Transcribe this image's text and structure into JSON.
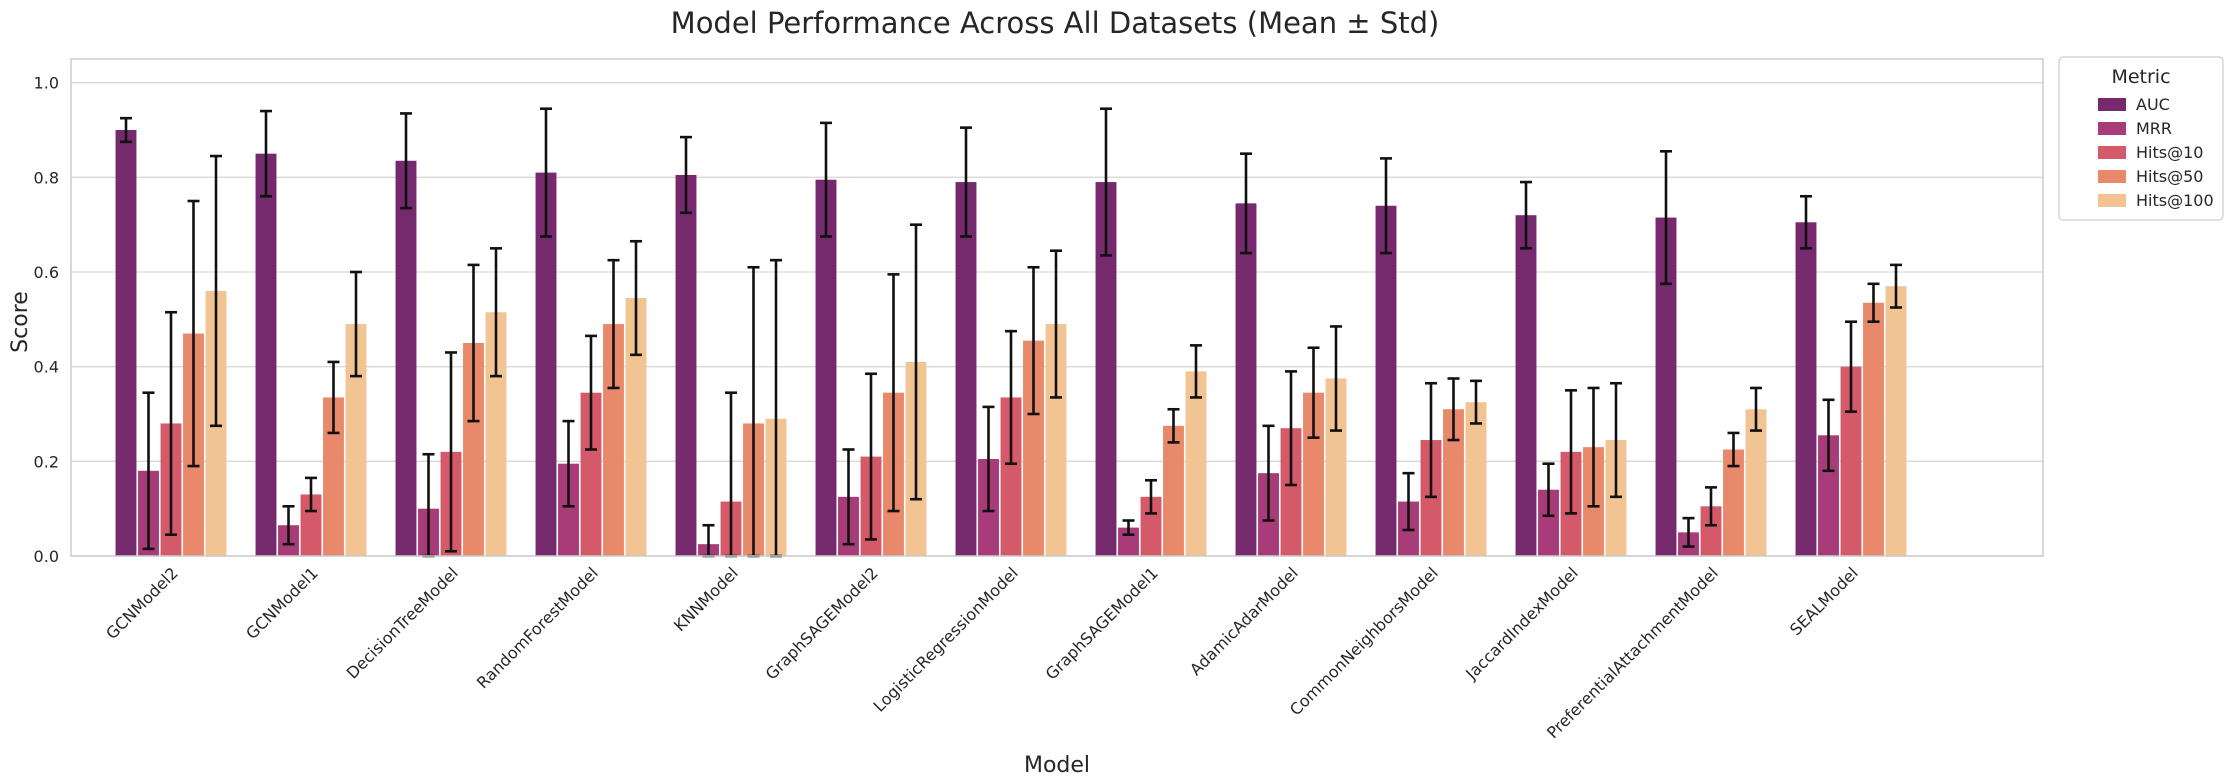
{
  "chart_data": {
    "type": "bar",
    "title": "Model Performance Across All Datasets (Mean ± Std)",
    "xlabel": "Model",
    "ylabel": "Score",
    "ylim": [
      0,
      1.05
    ],
    "yticks": [
      "0.0",
      "0.2",
      "0.4",
      "0.6",
      "0.8",
      "1.0"
    ],
    "grid": true,
    "legend": {
      "title": "Metric",
      "placement": "outside-top-right"
    },
    "categories": [
      "GCNModel2",
      "GCNModel1",
      "DecisionTreeModel",
      "RandomForestModel",
      "KNNModel",
      "GraphSAGEModel2",
      "LogisticRegressionModel",
      "GraphSAGEModel1",
      "AdamicAdarModel",
      "CommonNeighborsModel",
      "JaccardIndexModel",
      "PreferentialAttachmentModel",
      "SEALModel"
    ],
    "series": [
      {
        "name": "AUC",
        "color": "#762a6e",
        "values": [
          0.9,
          0.85,
          0.835,
          0.81,
          0.805,
          0.795,
          0.79,
          0.79,
          0.745,
          0.74,
          0.72,
          0.715,
          0.705
        ],
        "err": [
          0.025,
          0.09,
          0.1,
          0.135,
          0.08,
          0.12,
          0.115,
          0.155,
          0.105,
          0.1,
          0.07,
          0.14,
          0.055
        ]
      },
      {
        "name": "MRR",
        "color": "#a83c78",
        "values": [
          0.18,
          0.065,
          0.1,
          0.195,
          0.025,
          0.125,
          0.205,
          0.06,
          0.175,
          0.115,
          0.14,
          0.05,
          0.255
        ],
        "err": [
          0.165,
          0.04,
          0.115,
          0.09,
          0.04,
          0.1,
          0.11,
          0.015,
          0.1,
          0.06,
          0.055,
          0.03,
          0.075
        ]
      },
      {
        "name": "Hits@10",
        "color": "#d45a6a",
        "values": [
          0.28,
          0.13,
          0.22,
          0.345,
          0.115,
          0.21,
          0.335,
          0.125,
          0.27,
          0.245,
          0.22,
          0.105,
          0.4
        ],
        "err": [
          0.235,
          0.035,
          0.21,
          0.12,
          0.23,
          0.175,
          0.14,
          0.035,
          0.12,
          0.12,
          0.13,
          0.04,
          0.095
        ]
      },
      {
        "name": "Hits@50",
        "color": "#e8896b",
        "values": [
          0.47,
          0.335,
          0.45,
          0.49,
          0.28,
          0.345,
          0.455,
          0.275,
          0.345,
          0.31,
          0.23,
          0.225,
          0.535
        ],
        "err": [
          0.28,
          0.075,
          0.165,
          0.135,
          0.33,
          0.25,
          0.155,
          0.035,
          0.095,
          0.065,
          0.125,
          0.035,
          0.04
        ]
      },
      {
        "name": "Hits@100",
        "color": "#f2c493",
        "values": [
          0.56,
          0.49,
          0.515,
          0.545,
          0.29,
          0.41,
          0.49,
          0.39,
          0.375,
          0.325,
          0.245,
          0.31,
          0.57
        ],
        "err": [
          0.285,
          0.11,
          0.135,
          0.12,
          0.335,
          0.29,
          0.155,
          0.055,
          0.11,
          0.045,
          0.12,
          0.045,
          0.045
        ]
      }
    ]
  }
}
